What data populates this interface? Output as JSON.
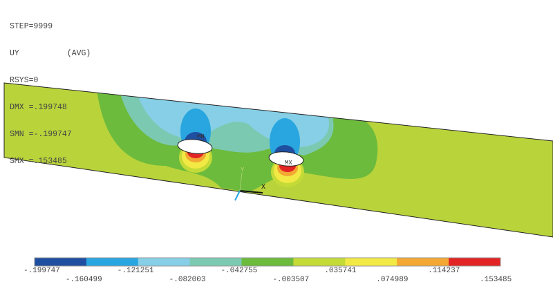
{
  "info": {
    "lines": [
      "STEP=9999",
      "UY          (AVG)",
      "RSYS=0",
      "DMX =.199748",
      "SMN =-.199747",
      "SMX =.153485"
    ]
  },
  "markers": {
    "min": "MN",
    "max": "MX"
  },
  "axes": {
    "x": "X",
    "y": "Y"
  },
  "legend": {
    "colors": [
      "#1f4fa0",
      "#29a6e0",
      "#86cfe6",
      "#7cc9b2",
      "#6cbb3c",
      "#c4da36",
      "#f2e945",
      "#f2a832",
      "#e32424"
    ],
    "labels": [
      "-.199747",
      "-.160499",
      "-.121251",
      "-.082003",
      "-.042755",
      "-.003507",
      ".035741",
      ".074989",
      ".114237",
      ".153485"
    ]
  },
  "field_color": "#b9d33b"
}
